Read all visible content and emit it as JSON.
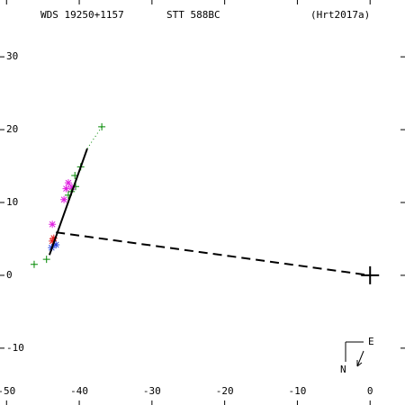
{
  "chart_data": {
    "type": "scatter",
    "title": "WDS 19250+1157",
    "subtitle": "STT 588BC",
    "reference": "(Hrt2017a)",
    "compass": {
      "east": "E",
      "north": "N"
    },
    "xlim": [
      -50.9,
      4.8
    ],
    "ylim": [
      -17.8,
      37.8
    ],
    "xticks": [
      -50,
      -40,
      -30,
      -20,
      -10,
      0
    ],
    "yticks": [
      30,
      20,
      10,
      0,
      -10
    ],
    "series": [
      {
        "marker": "plus",
        "color": "#008800",
        "x": [
          -36.9,
          -46.2,
          -44.5,
          -39.8,
          -40.6,
          -41.1,
          -40.5,
          -41.5
        ],
        "values": [
          20.4,
          1.5,
          2.2,
          14.9,
          13.7,
          11.5,
          12.2,
          11.0
        ]
      },
      {
        "marker": "star",
        "color": "#e020e0",
        "x": [
          -41.5,
          -42.1,
          -43.7,
          -41.0,
          -41.8
        ],
        "values": [
          12.7,
          10.4,
          7.0,
          12.1,
          11.9
        ]
      },
      {
        "marker": "star",
        "color": "#e02020",
        "x": [
          -43.5,
          -43.7
        ],
        "values": [
          5.1,
          4.7
        ]
      },
      {
        "marker": "star",
        "color": "#2040e0",
        "x": [
          -43.2,
          -43.8
        ],
        "values": [
          4.2,
          3.8
        ]
      }
    ],
    "fit_line": {
      "x": [
        -44.1,
        -38.9
      ],
      "values": [
        2.8,
        17.4
      ],
      "color": "#000000"
    },
    "fit_extension": {
      "x": [
        -38.9,
        -36.9
      ],
      "values": [
        17.4,
        20.4
      ],
      "color": "#008800"
    },
    "primary_link": {
      "x": [
        -43.2,
        0
      ],
      "values": [
        5.9,
        0
      ],
      "color": "#000000"
    },
    "primary": {
      "x": 0,
      "value": 0
    }
  }
}
